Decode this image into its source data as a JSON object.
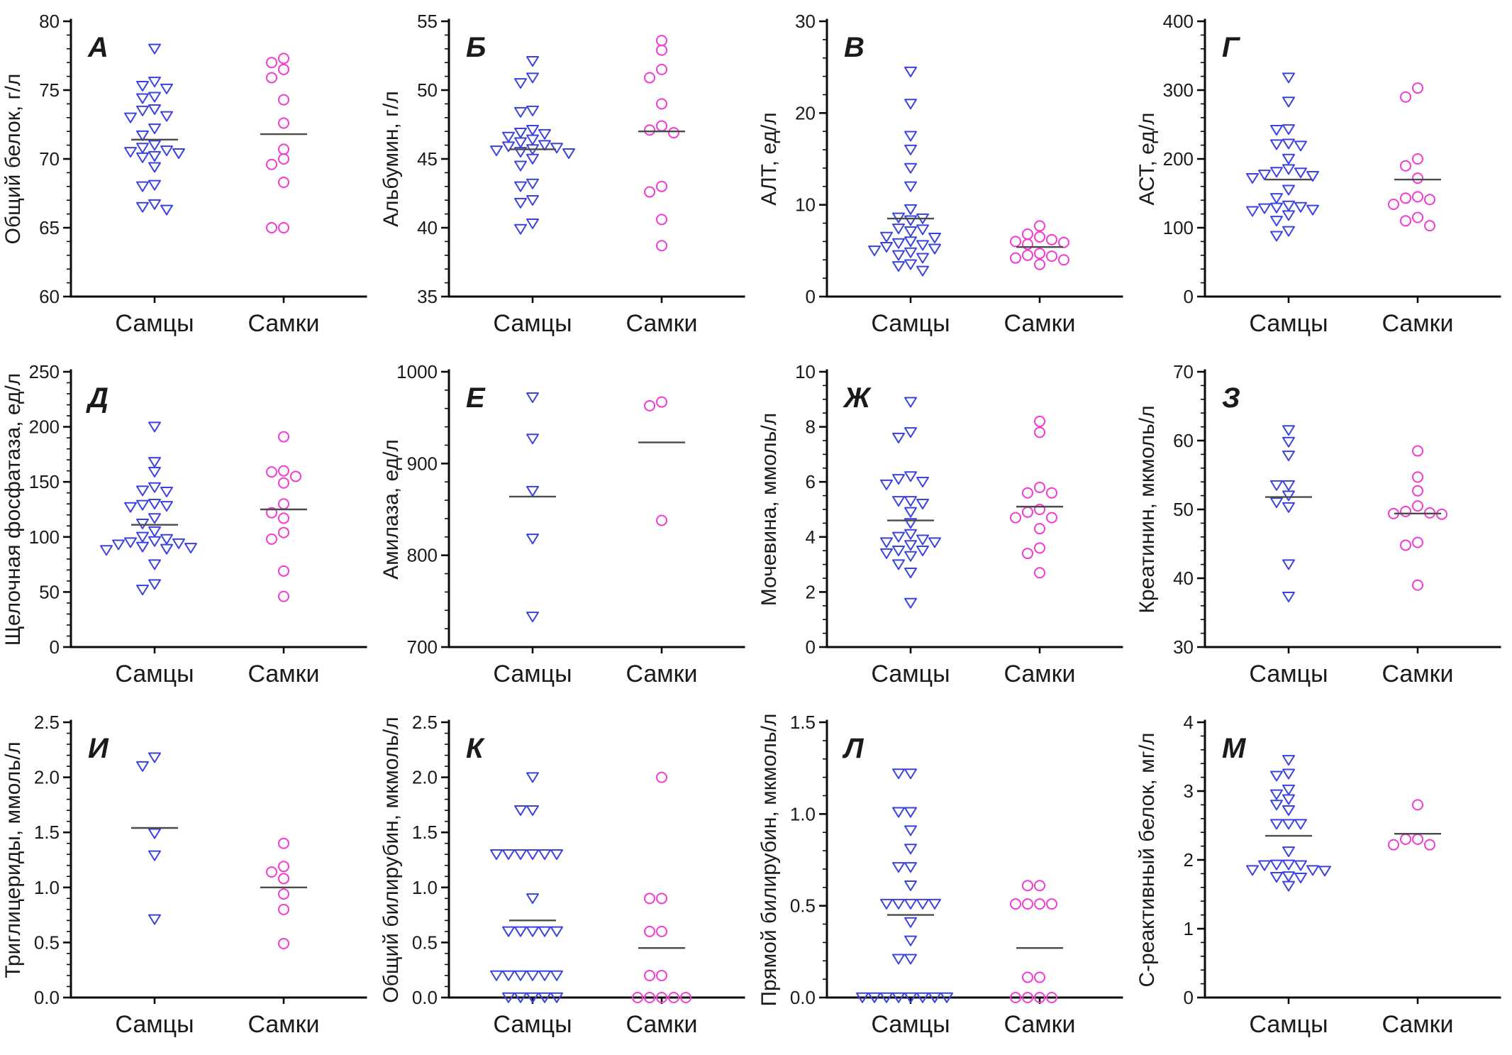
{
  "figure": {
    "groups": [
      {
        "key": "males",
        "label": "Самцы",
        "marker": "triangle-down-open",
        "color": "#3b43dd"
      },
      {
        "key": "females",
        "label": "Самки",
        "marker": "circle-open",
        "color": "#f53ad2"
      }
    ],
    "mean_line_color": "#4a4a4a",
    "axis_color": "#0a0a0a",
    "text_color": "#1a1a1a"
  },
  "chart_data": [
    {
      "type": "scatter",
      "panel_label": "А",
      "ylabel": "Общий белок, г/л",
      "ylim": [
        60,
        80
      ],
      "yticks": [
        60,
        65,
        70,
        75,
        80
      ],
      "ytick_labels": [
        "60",
        "65",
        "70",
        "75",
        "80"
      ],
      "minor_divs": 5,
      "categories": [
        "Самцы",
        "Самки"
      ],
      "series": [
        {
          "group": "males",
          "mean": 71.4,
          "values": [
            78.0,
            75.6,
            75.3,
            75.1,
            74.5,
            74.4,
            73.6,
            73.5,
            73.1,
            73.0,
            72.2,
            71.7,
            71.0,
            70.8,
            70.6,
            70.5,
            70.4,
            70.2,
            70.1,
            69.4,
            68.1,
            68.0,
            66.7,
            66.5,
            66.3
          ]
        },
        {
          "group": "females",
          "mean": 71.8,
          "values": [
            77.3,
            77.0,
            76.5,
            75.9,
            74.3,
            72.6,
            70.7,
            70.0,
            69.6,
            68.3,
            65.0,
            65.0
          ]
        }
      ]
    },
    {
      "type": "scatter",
      "panel_label": "Б",
      "ylabel": "Альбумин, г/л",
      "ylim": [
        35,
        55
      ],
      "yticks": [
        35,
        40,
        45,
        50,
        55
      ],
      "ytick_labels": [
        "35",
        "40",
        "45",
        "50",
        "55"
      ],
      "minor_divs": 5,
      "categories": [
        "Самцы",
        "Самки"
      ],
      "series": [
        {
          "group": "males",
          "mean": 45.7,
          "values": [
            52.1,
            50.9,
            50.5,
            48.5,
            48.4,
            47.1,
            46.9,
            46.8,
            46.6,
            46.4,
            46.2,
            46.0,
            45.9,
            45.8,
            45.7,
            45.6,
            45.5,
            45.4,
            45.0,
            44.5,
            43.2,
            43.0,
            42.0,
            41.8,
            40.3,
            39.9
          ]
        },
        {
          "group": "females",
          "mean": 47.0,
          "values": [
            53.6,
            52.9,
            51.5,
            50.9,
            49.0,
            47.4,
            47.1,
            46.9,
            43.0,
            42.6,
            40.6,
            38.7
          ]
        }
      ]
    },
    {
      "type": "scatter",
      "panel_label": "В",
      "ylabel": "АЛТ, ед/л",
      "ylim": [
        0,
        30
      ],
      "yticks": [
        0,
        10,
        20,
        30
      ],
      "ytick_labels": [
        "0",
        "10",
        "20",
        "30"
      ],
      "minor_divs": 5,
      "categories": [
        "Самцы",
        "Самки"
      ],
      "series": [
        {
          "group": "males",
          "mean": 8.5,
          "values": [
            24.5,
            21.0,
            17.5,
            16.0,
            14.0,
            12.0,
            9.5,
            8.6,
            8.5,
            8.3,
            7.4,
            7.3,
            7.1,
            6.5,
            6.4,
            6.0,
            5.8,
            5.6,
            5.4,
            5.2,
            5.0,
            4.8,
            4.5,
            4.2,
            3.5,
            3.3,
            2.8
          ]
        },
        {
          "group": "females",
          "mean": 5.4,
          "values": [
            7.7,
            6.8,
            6.5,
            6.2,
            6.0,
            5.9,
            5.7,
            4.7,
            4.5,
            4.4,
            4.2,
            4.0,
            3.5
          ]
        }
      ]
    },
    {
      "type": "scatter",
      "panel_label": "Г",
      "ylabel": "АСТ, ед/л",
      "ylim": [
        0,
        400
      ],
      "yticks": [
        0,
        100,
        200,
        300,
        400
      ],
      "ytick_labels": [
        "0",
        "100",
        "200",
        "300",
        "400"
      ],
      "minor_divs": 5,
      "categories": [
        "Самцы",
        "Самки"
      ],
      "series": [
        {
          "group": "males",
          "mean": 170,
          "values": [
            318,
            283,
            243,
            242,
            222,
            221,
            219,
            200,
            185,
            181,
            180,
            177,
            175,
            172,
            155,
            143,
            132,
            130,
            129,
            128,
            126,
            124,
            118,
            110,
            95,
            88
          ]
        },
        {
          "group": "females",
          "mean": 170,
          "values": [
            303,
            290,
            200,
            190,
            172,
            145,
            143,
            141,
            134,
            115,
            110,
            103
          ]
        }
      ]
    },
    {
      "type": "scatter",
      "panel_label": "Д",
      "ylabel": "Щелочная фосфатаза, ед/л",
      "ylim": [
        0,
        250
      ],
      "yticks": [
        0,
        50,
        100,
        150,
        200,
        250
      ],
      "ytick_labels": [
        "0",
        "50",
        "100",
        "150",
        "200",
        "250"
      ],
      "minor_divs": 5,
      "categories": [
        "Самцы",
        "Самки"
      ],
      "series": [
        {
          "group": "males",
          "mean": 111,
          "values": [
            200,
            168,
            159,
            145,
            142,
            141,
            130,
            129,
            128,
            127,
            117,
            112,
            105,
            100,
            98,
            96,
            95,
            94,
            93,
            91,
            90,
            89,
            88,
            75,
            57,
            52
          ]
        },
        {
          "group": "females",
          "mean": 125,
          "values": [
            191,
            160,
            159,
            155,
            149,
            130,
            122,
            117,
            104,
            98,
            69,
            46
          ]
        }
      ]
    },
    {
      "type": "scatter",
      "panel_label": "Е",
      "ylabel": "Амилаза, ед/л",
      "ylim": [
        700,
        1000
      ],
      "yticks": [
        700,
        800,
        900,
        1000
      ],
      "ytick_labels": [
        "700",
        "800",
        "900",
        "1000"
      ],
      "minor_divs": 5,
      "categories": [
        "Самцы",
        "Самки"
      ],
      "series": [
        {
          "group": "males",
          "mean": 864,
          "values": [
            972,
            927,
            870,
            818,
            733
          ]
        },
        {
          "group": "females",
          "mean": 923,
          "values": [
            967,
            963,
            838
          ]
        }
      ]
    },
    {
      "type": "scatter",
      "panel_label": "Ж",
      "ylabel": "Мочевина, ммоль/л",
      "ylim": [
        0,
        10
      ],
      "yticks": [
        0,
        2,
        4,
        6,
        8,
        10
      ],
      "ytick_labels": [
        "0",
        "2",
        "4",
        "6",
        "8",
        "10"
      ],
      "minor_divs": 4,
      "categories": [
        "Самцы",
        "Самки"
      ],
      "series": [
        {
          "group": "males",
          "mean": 4.6,
          "values": [
            8.9,
            7.8,
            7.6,
            6.2,
            6.1,
            6.0,
            5.9,
            5.3,
            5.3,
            5.2,
            4.9,
            4.5,
            4.1,
            4.0,
            3.9,
            3.8,
            3.8,
            3.7,
            3.5,
            3.5,
            3.4,
            3.3,
            3.0,
            2.7,
            1.6
          ]
        },
        {
          "group": "females",
          "mean": 5.1,
          "values": [
            8.2,
            7.8,
            5.8,
            5.6,
            5.6,
            5.0,
            4.9,
            4.7,
            4.7,
            4.3,
            3.6,
            3.4,
            2.7
          ]
        }
      ]
    },
    {
      "type": "scatter",
      "panel_label": "З",
      "ylabel": "Креатинин, мкмоль/л",
      "ylim": [
        30,
        70
      ],
      "yticks": [
        30,
        40,
        50,
        60,
        70
      ],
      "ytick_labels": [
        "30",
        "40",
        "50",
        "60",
        "70"
      ],
      "minor_divs": 5,
      "categories": [
        "Самцы",
        "Самки"
      ],
      "series": [
        {
          "group": "males",
          "mean": 51.8,
          "values": [
            61.5,
            59.8,
            57.8,
            53.5,
            53.5,
            52.0,
            51.0,
            50.3,
            42.0,
            37.3
          ]
        },
        {
          "group": "females",
          "mean": 49.4,
          "values": [
            58.5,
            54.7,
            52.7,
            50.5,
            49.7,
            49.5,
            49.4,
            49.3,
            45.2,
            44.8,
            39.0
          ]
        }
      ]
    },
    {
      "type": "scatter",
      "panel_label": "И",
      "ylabel": "Триглицериды, ммоль/л",
      "ylim": [
        0,
        2.5
      ],
      "yticks": [
        0,
        0.5,
        1.0,
        1.5,
        2.0,
        2.5
      ],
      "ytick_labels": [
        "0.0",
        "0.5",
        "1.0",
        "1.5",
        "2.0",
        "2.5"
      ],
      "minor_divs": 5,
      "categories": [
        "Самцы",
        "Самки"
      ],
      "series": [
        {
          "group": "males",
          "mean": 1.54,
          "values": [
            2.18,
            2.1,
            1.49,
            1.29,
            0.71
          ]
        },
        {
          "group": "females",
          "mean": 1.0,
          "values": [
            1.4,
            1.19,
            1.14,
            1.08,
            0.94,
            0.8,
            0.49
          ]
        }
      ]
    },
    {
      "type": "scatter",
      "panel_label": "К",
      "ylabel": "Общий билирубин, мкмоль/л",
      "ylim": [
        0,
        2.5
      ],
      "yticks": [
        0,
        0.5,
        1.0,
        1.5,
        2.0,
        2.5
      ],
      "ytick_labels": [
        "0.0",
        "0.5",
        "1.0",
        "1.5",
        "2.0",
        "2.5"
      ],
      "minor_divs": 5,
      "categories": [
        "Самцы",
        "Самки"
      ],
      "series": [
        {
          "group": "males",
          "mean": 0.7,
          "values": [
            2.0,
            1.7,
            1.7,
            1.3,
            1.3,
            1.3,
            1.3,
            1.3,
            1.3,
            0.9,
            0.6,
            0.6,
            0.6,
            0.6,
            0.6,
            0.2,
            0.2,
            0.2,
            0.2,
            0.2,
            0.2,
            0.0,
            0.0,
            0.0,
            0.0,
            0.0
          ]
        },
        {
          "group": "females",
          "mean": 0.45,
          "values": [
            2.0,
            0.9,
            0.9,
            0.6,
            0.6,
            0.2,
            0.2,
            0.0,
            0.0,
            0.0,
            0.0,
            0.0
          ]
        }
      ]
    },
    {
      "type": "scatter",
      "panel_label": "Л",
      "ylabel": "Прямой билирубин, мкмоль/л",
      "ylim": [
        0,
        1.5
      ],
      "yticks": [
        0,
        0.5,
        1.0,
        1.5
      ],
      "ytick_labels": [
        "0.0",
        "0.5",
        "1.0",
        "1.5"
      ],
      "minor_divs": 5,
      "categories": [
        "Самцы",
        "Самки"
      ],
      "series": [
        {
          "group": "males",
          "mean": 0.45,
          "values": [
            1.22,
            1.22,
            1.01,
            1.01,
            0.91,
            0.81,
            0.71,
            0.71,
            0.61,
            0.51,
            0.51,
            0.51,
            0.51,
            0.51,
            0.41,
            0.31,
            0.21,
            0.21,
            0.0,
            0.0,
            0.0,
            0.0,
            0.0,
            0.0,
            0.0,
            0.0
          ]
        },
        {
          "group": "females",
          "mean": 0.27,
          "values": [
            0.61,
            0.61,
            0.51,
            0.51,
            0.51,
            0.51,
            0.11,
            0.11,
            0.0,
            0.0,
            0.0,
            0.0
          ]
        }
      ]
    },
    {
      "type": "scatter",
      "panel_label": "М",
      "ylabel": "С-реактивный белок, мг/л",
      "ylim": [
        0,
        4
      ],
      "yticks": [
        0,
        1,
        2,
        3,
        4
      ],
      "ytick_labels": [
        "0",
        "1",
        "2",
        "3",
        "4"
      ],
      "minor_divs": 5,
      "categories": [
        "Самцы",
        "Самки"
      ],
      "series": [
        {
          "group": "males",
          "mean": 2.35,
          "values": [
            3.45,
            3.25,
            3.22,
            3.02,
            2.95,
            2.88,
            2.8,
            2.72,
            2.52,
            2.52,
            2.52,
            2.12,
            1.93,
            1.93,
            1.92,
            1.92,
            1.85,
            1.85,
            1.84,
            1.76,
            1.75,
            1.74,
            1.62
          ]
        },
        {
          "group": "females",
          "mean": 2.38,
          "values": [
            2.8,
            2.3,
            2.3,
            2.22,
            2.22
          ]
        }
      ]
    }
  ]
}
